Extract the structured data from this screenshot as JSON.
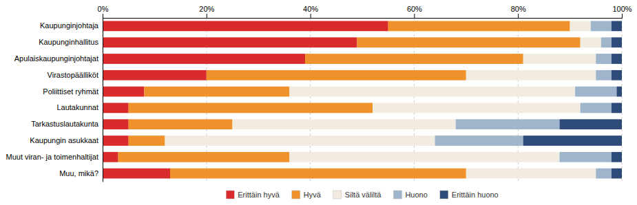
{
  "chart_data": {
    "type": "bar",
    "orientation": "horizontal",
    "stacked": true,
    "categories": [
      "Kaupunginjohtaja",
      "Kaupunginhallitus",
      "Apulaiskaupunginjohtajat",
      "Virastopäälliköt",
      "Poliittiset ryhmät",
      "Lautakunnat",
      "Tarkastuslautakunta",
      "Kaupungin asukkaat",
      "Muut viran- ja toimenhaltijat",
      "Muu, mikä?"
    ],
    "series": [
      {
        "name": "Erittäin hyvä",
        "color": "#d92b2b",
        "values": [
          55,
          49,
          39,
          20,
          8,
          5,
          5,
          5,
          3,
          13
        ]
      },
      {
        "name": "Hyvä",
        "color": "#f0922b",
        "values": [
          35,
          43,
          42,
          50,
          28,
          47,
          20,
          7,
          33,
          57
        ]
      },
      {
        "name": "Siltä väliltä",
        "color": "#f2ece0",
        "values": [
          4,
          4,
          14,
          25,
          55,
          40,
          43,
          52,
          52,
          25
        ]
      },
      {
        "name": "Huono",
        "color": "#9eb5cc",
        "values": [
          4,
          2,
          3,
          3,
          8,
          6,
          20,
          17,
          10,
          3
        ]
      },
      {
        "name": "Erittäin huono",
        "color": "#2e4b7a",
        "values": [
          2,
          2,
          2,
          2,
          1,
          2,
          12,
          19,
          2,
          2
        ]
      }
    ],
    "xlim": [
      0,
      100
    ],
    "xticks": [
      {
        "value": 0,
        "label": "0%"
      },
      {
        "value": 20,
        "label": "20%"
      },
      {
        "value": 40,
        "label": "40%"
      },
      {
        "value": 60,
        "label": "60%"
      },
      {
        "value": 80,
        "label": "80%"
      },
      {
        "value": 100,
        "label": "100%"
      }
    ],
    "grid": true,
    "legend": "bottom"
  }
}
